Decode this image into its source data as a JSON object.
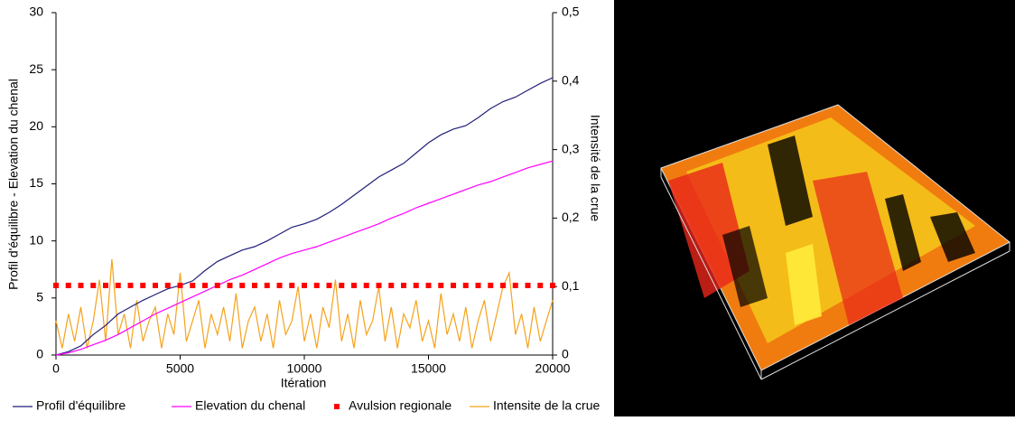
{
  "chart_data": {
    "type": "line",
    "x_label": "Itération",
    "y_label": "Profil d'équilibre - Elevation du chenal",
    "y2_label": "Intensité de la crue",
    "x": [
      0,
      500,
      1000,
      1500,
      2000,
      2500,
      3000,
      3500,
      4000,
      4500,
      5000,
      5500,
      6000,
      6500,
      7000,
      7500,
      8000,
      8500,
      9000,
      9500,
      10000,
      10500,
      11000,
      11500,
      12000,
      12500,
      13000,
      13500,
      14000,
      14500,
      15000,
      15500,
      16000,
      16500,
      17000,
      17500,
      18000,
      18500,
      19000,
      19500,
      20000
    ],
    "xlim": [
      0,
      20000
    ],
    "xticks": [
      0,
      5000,
      10000,
      15000,
      20000
    ],
    "ylim": [
      0,
      30
    ],
    "yticks": [
      0,
      5,
      10,
      15,
      20,
      25,
      30
    ],
    "y2lim": [
      0,
      0.5
    ],
    "y2ticks": [
      {
        "value": 0,
        "label": "0"
      },
      {
        "value": 0.1,
        "label": "0,1"
      },
      {
        "value": 0.2,
        "label": "0,2"
      },
      {
        "value": 0.3,
        "label": "0,3"
      },
      {
        "value": 0.4,
        "label": "0,4"
      },
      {
        "value": 0.5,
        "label": "0,5"
      }
    ],
    "legend": "bottom",
    "series": [
      {
        "name": "Profil d'équilibre",
        "color": "#1f1f7a",
        "style": "line",
        "values": [
          0,
          0.3,
          0.8,
          1.8,
          2.6,
          3.6,
          4.2,
          4.8,
          5.3,
          5.8,
          6.1,
          6.5,
          7.4,
          8.2,
          8.7,
          9.2,
          9.5,
          10.0,
          10.6,
          11.2,
          11.5,
          11.9,
          12.5,
          13.2,
          14.0,
          14.8,
          15.6,
          16.2,
          16.8,
          17.7,
          18.6,
          19.3,
          19.8,
          20.1,
          20.8,
          21.6,
          22.2,
          22.6,
          23.2,
          23.8,
          24.3
        ]
      },
      {
        "name": "Elevation du chenal",
        "color": "#ff00ff",
        "style": "line",
        "values": [
          0,
          0.2,
          0.5,
          0.9,
          1.3,
          1.8,
          2.4,
          3.0,
          3.6,
          4.1,
          4.6,
          5.1,
          5.6,
          6.1,
          6.6,
          7.0,
          7.5,
          8.0,
          8.5,
          8.9,
          9.2,
          9.5,
          9.9,
          10.3,
          10.7,
          11.1,
          11.5,
          12.0,
          12.4,
          12.9,
          13.3,
          13.7,
          14.1,
          14.5,
          14.9,
          15.2,
          15.6,
          16.0,
          16.4,
          16.7,
          17.0
        ]
      },
      {
        "name": "Avulsion regionale",
        "color": "#ff0000",
        "style": "marker",
        "values": [
          6.1,
          6.1,
          6.1,
          6.1,
          6.1,
          6.1,
          6.1,
          6.1,
          6.1,
          6.1,
          6.1,
          6.1,
          6.1,
          6.1,
          6.1,
          6.1,
          6.1,
          6.1,
          6.1,
          6.1,
          6.1,
          6.1,
          6.1,
          6.1,
          6.1,
          6.1,
          6.1,
          6.1,
          6.1,
          6.1,
          6.1,
          6.1,
          6.1,
          6.1,
          6.1,
          6.1,
          6.1,
          6.1,
          6.1,
          6.1,
          6.1
        ]
      },
      {
        "name": "Intensite de la crue",
        "color": "#f5a21b",
        "style": "line",
        "axis": "y2",
        "x": [
          0,
          250,
          500,
          750,
          1000,
          1250,
          1500,
          1750,
          2000,
          2250,
          2500,
          2750,
          3000,
          3250,
          3500,
          3750,
          4000,
          4250,
          4500,
          4750,
          5000,
          5250,
          5500,
          5750,
          6000,
          6250,
          6500,
          6750,
          7000,
          7250,
          7500,
          7750,
          8000,
          8250,
          8500,
          8750,
          9000,
          9250,
          9500,
          9750,
          10000,
          10250,
          10500,
          10750,
          11000,
          11250,
          11500,
          11750,
          12000,
          12250,
          12500,
          12750,
          13000,
          13250,
          13500,
          13750,
          14000,
          14250,
          14500,
          14750,
          15000,
          15250,
          15500,
          15750,
          16000,
          16250,
          16500,
          16750,
          17000,
          17250,
          17500,
          17750,
          18000,
          18250,
          18500,
          18750,
          19000,
          19250,
          19500,
          19750,
          20000
        ],
        "values": [
          0.05,
          0.01,
          0.06,
          0.02,
          0.07,
          0.01,
          0.05,
          0.11,
          0.02,
          0.14,
          0.03,
          0.06,
          0.01,
          0.08,
          0.02,
          0.05,
          0.07,
          0.01,
          0.06,
          0.03,
          0.12,
          0.02,
          0.05,
          0.08,
          0.01,
          0.06,
          0.03,
          0.07,
          0.02,
          0.09,
          0.01,
          0.05,
          0.07,
          0.02,
          0.06,
          0.01,
          0.08,
          0.03,
          0.05,
          0.1,
          0.02,
          0.06,
          0.01,
          0.07,
          0.04,
          0.11,
          0.02,
          0.06,
          0.01,
          0.08,
          0.03,
          0.05,
          0.1,
          0.02,
          0.07,
          0.01,
          0.06,
          0.04,
          0.08,
          0.02,
          0.05,
          0.01,
          0.09,
          0.03,
          0.06,
          0.02,
          0.07,
          0.01,
          0.05,
          0.08,
          0.02,
          0.06,
          0.1,
          0.12,
          0.03,
          0.06,
          0.01,
          0.07,
          0.02,
          0.05,
          0.08
        ]
      }
    ]
  }
}
